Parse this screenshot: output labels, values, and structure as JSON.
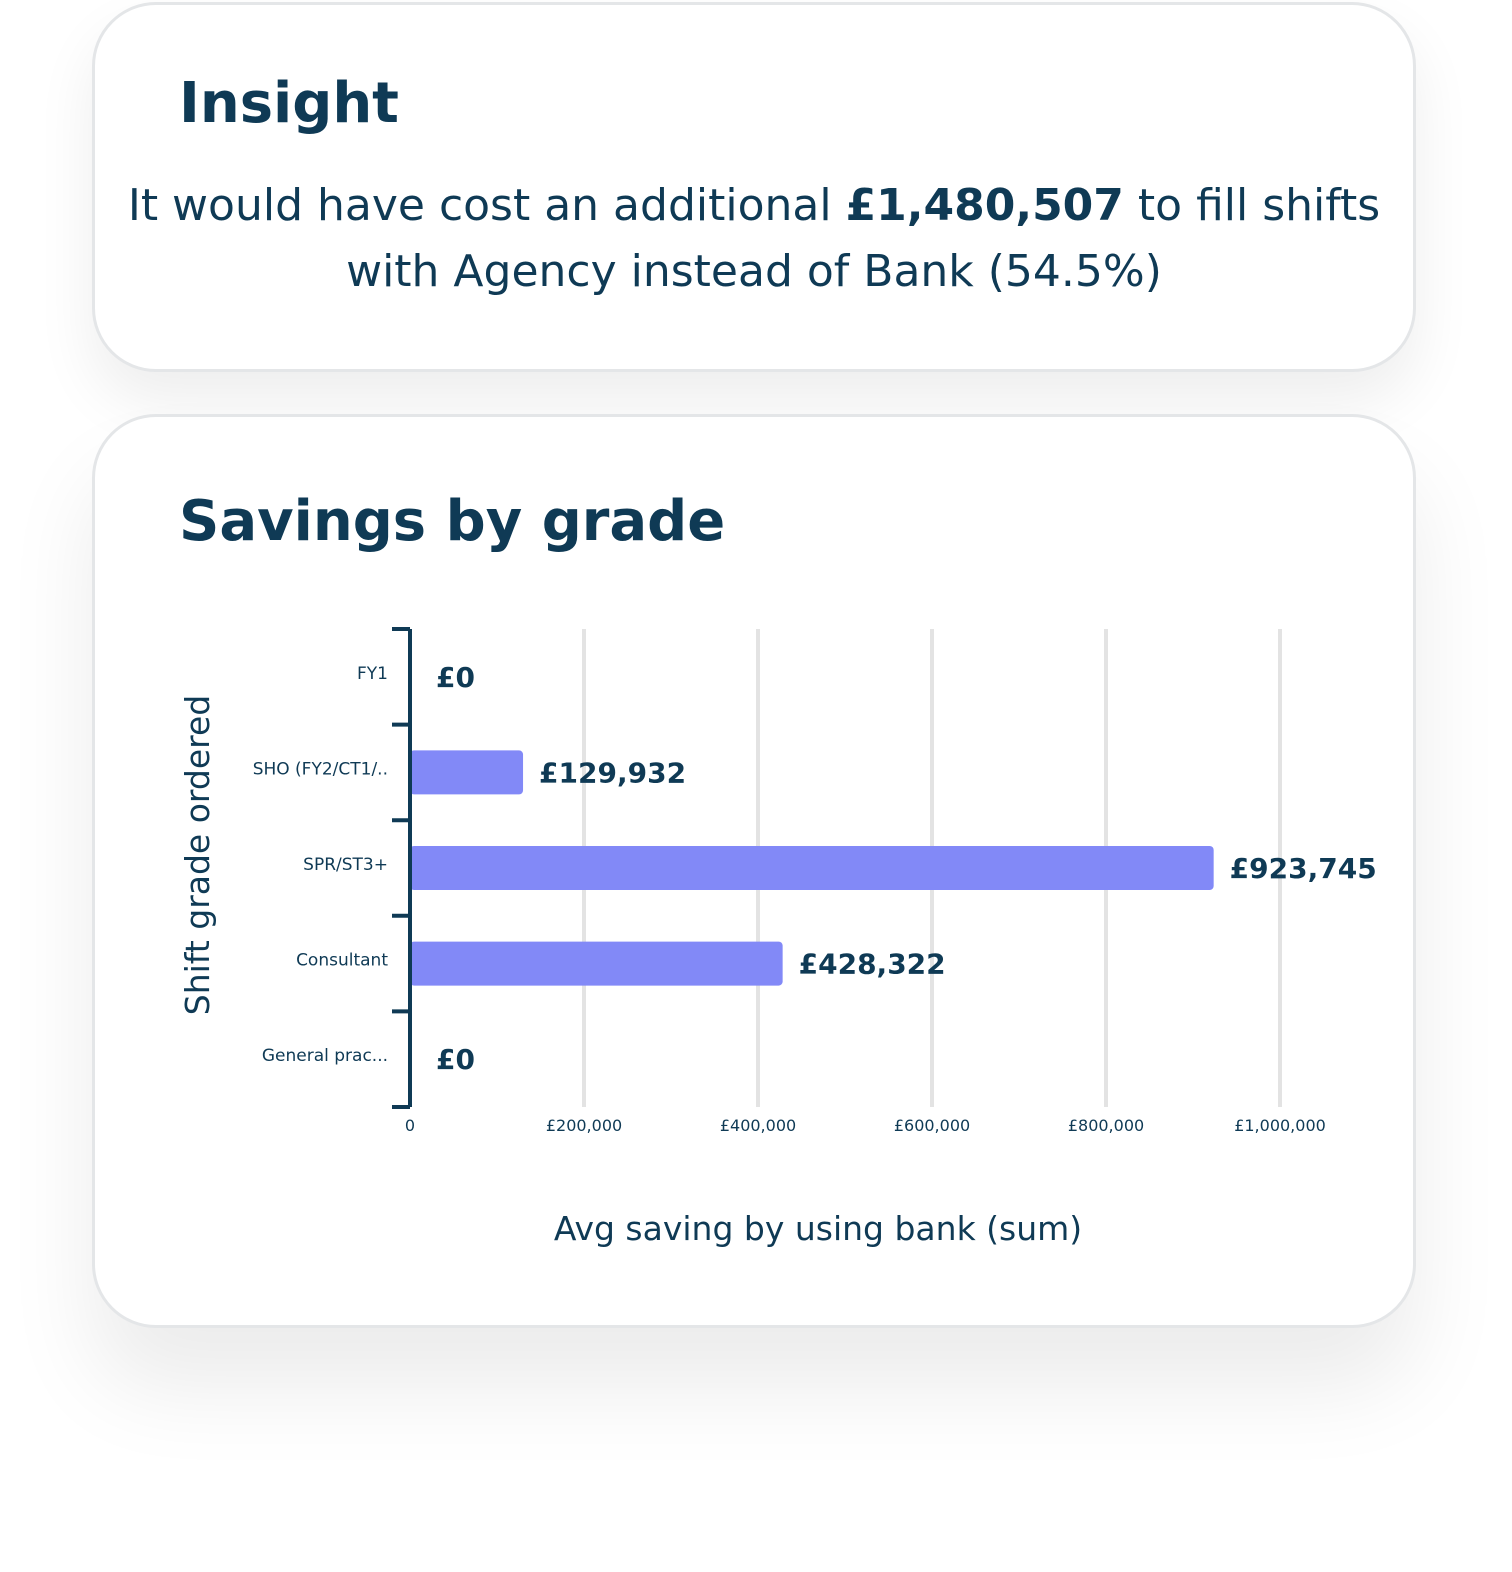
{
  "insight": {
    "title": "Insight",
    "text_before": "It would have cost an additional ",
    "amount": "£1,480,507",
    "text_after": " to fill shifts with Agency instead of Bank (54.5%)"
  },
  "chart_data": {
    "type": "bar",
    "orientation": "horizontal",
    "title": "Savings by grade",
    "xlabel": "Avg saving by using bank (sum)",
    "ylabel": "Shift grade ordered",
    "categories": [
      "FY1",
      "SHO (FY2/CT1/..",
      "SPR/ST3+",
      "Consultant",
      "General prac..."
    ],
    "values": [
      0,
      129932,
      923745,
      428322,
      0
    ],
    "value_labels": [
      "£0",
      "£129,932",
      "£923,745",
      "£428,322",
      "£0"
    ],
    "xlim": [
      0,
      1000000
    ],
    "x_ticks": [
      0,
      200000,
      400000,
      600000,
      800000,
      1000000
    ],
    "x_tick_labels": [
      "0",
      "£200,000",
      "£400,000",
      "£600,000",
      "£800,000",
      "£1,000,000"
    ],
    "grid": true,
    "colors": {
      "bar": "#8289f7",
      "axis": "#0f3a55",
      "grid": "#e3e3e3"
    }
  }
}
